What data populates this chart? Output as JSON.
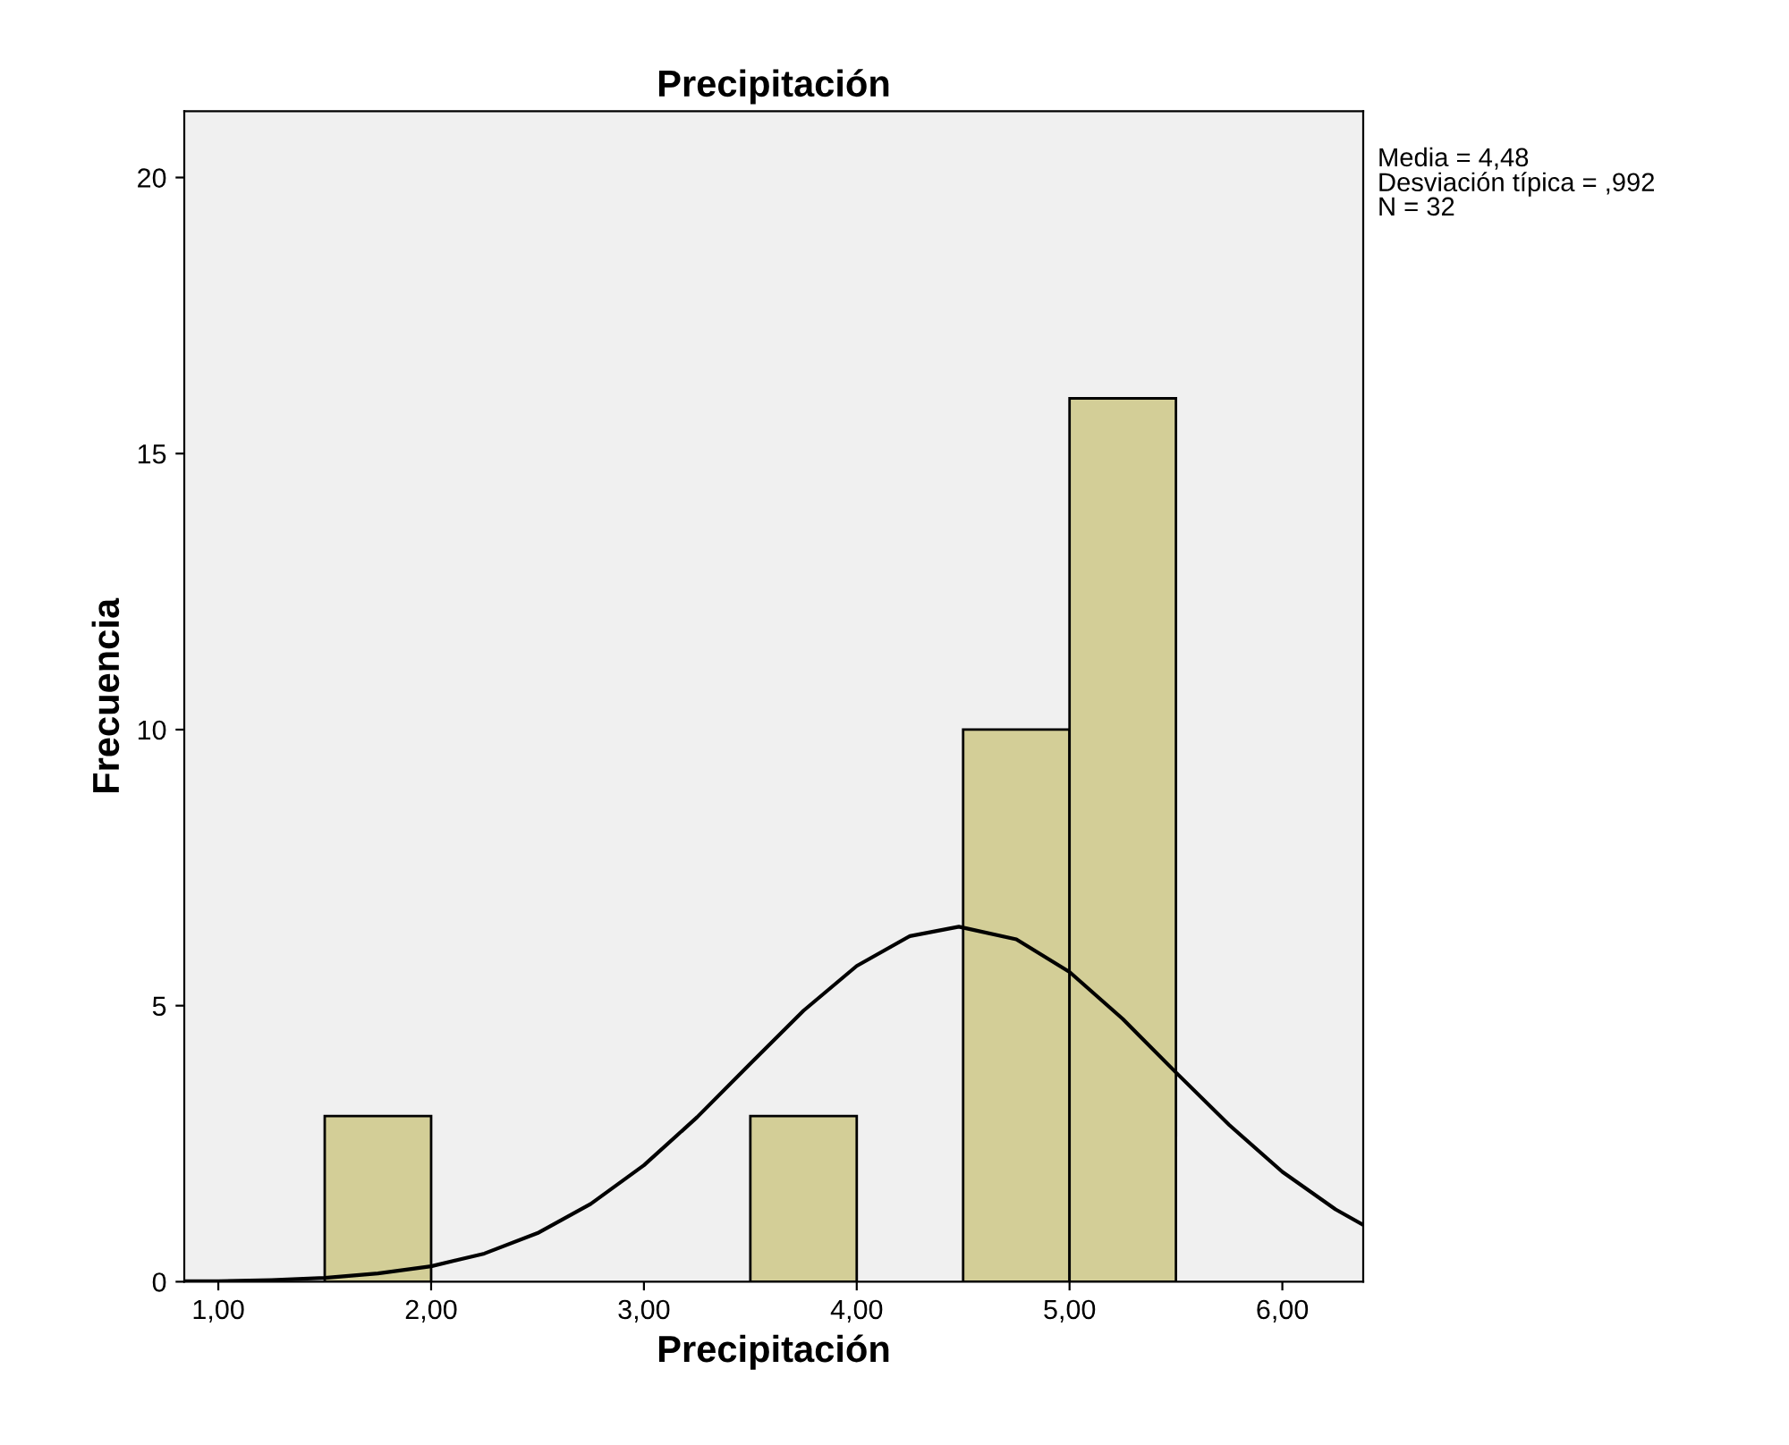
{
  "chart_data": {
    "type": "histogram",
    "title": "Precipitación",
    "xlabel": "Precipitación",
    "ylabel": "Frecuencia",
    "bins": [
      1.5,
      2.0,
      2.5,
      3.0,
      3.5,
      4.0,
      4.5,
      5.0,
      5.5
    ],
    "values": [
      3,
      0,
      0,
      0,
      3,
      0,
      10,
      16
    ],
    "color": "#d3ce97",
    "series": [
      {
        "type": "line",
        "color": "#000000",
        "x": [
          0.84,
          1.0,
          1.25,
          1.5,
          1.75,
          2.0,
          2.25,
          2.5,
          2.75,
          3.0,
          3.25,
          3.5,
          3.75,
          4.0,
          4.25,
          4.48,
          4.75,
          5.0,
          5.25,
          5.5,
          5.75,
          6.0,
          6.25,
          6.38
        ],
        "values": [
          0.01,
          0.01,
          0.03,
          0.07,
          0.15,
          0.28,
          0.51,
          0.88,
          1.41,
          2.11,
          2.98,
          3.95,
          4.91,
          5.72,
          6.26,
          6.43,
          6.2,
          5.61,
          4.76,
          3.79,
          2.84,
          1.99,
          1.31,
          1.03
        ]
      }
    ],
    "xlim": [
      0.84,
      6.38
    ],
    "ylim": [
      0,
      21.2
    ],
    "xticks": [
      {
        "value": 1,
        "label": "1,00"
      },
      {
        "value": 2,
        "label": "2,00"
      },
      {
        "value": 3,
        "label": "3,00"
      },
      {
        "value": 4,
        "label": "4,00"
      },
      {
        "value": 5,
        "label": "5,00"
      },
      {
        "value": 6,
        "label": "6,00"
      }
    ],
    "yticks": [
      0,
      5,
      10,
      15,
      20
    ],
    "grid": false,
    "legend": false,
    "annotations": [
      "Media = 4,48",
      "Desviación típica = ,992",
      "N = 32"
    ]
  }
}
